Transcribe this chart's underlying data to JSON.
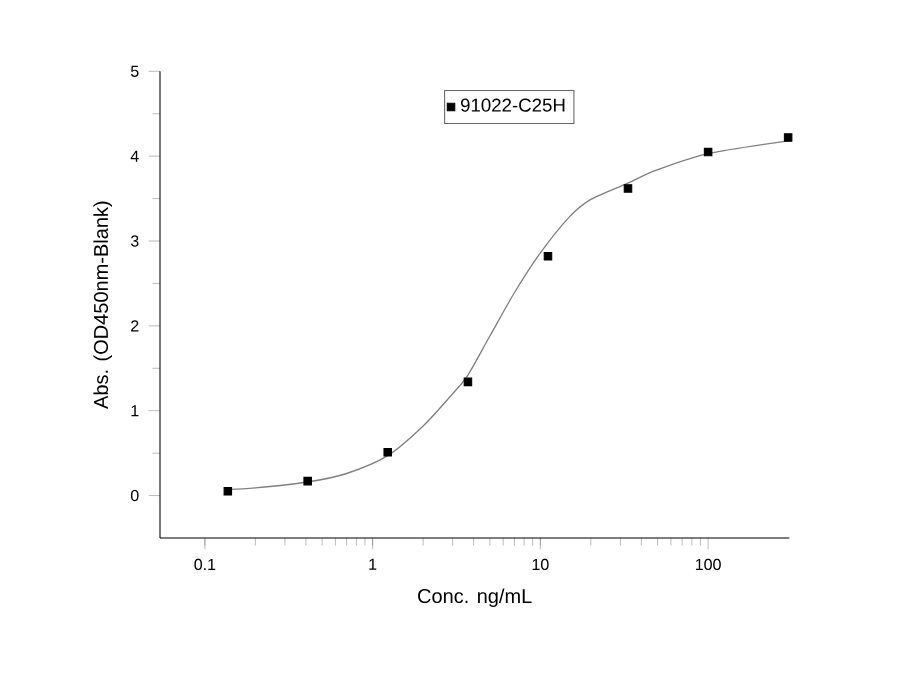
{
  "chart_data": {
    "type": "scatter",
    "xlabel": "Conc. ng/mL",
    "ylabel": "Abs. (OD450nm-Blank)",
    "log": "x",
    "xlim": [
      0.054,
      305
    ],
    "ylim": [
      -0.5,
      5
    ],
    "xticks": [
      0.1,
      1,
      10,
      100
    ],
    "yticks": [
      0,
      1,
      2,
      3,
      4,
      5
    ],
    "legend": "top",
    "series": [
      {
        "name": "91022-C25H",
        "color": "#000000",
        "marker": "square",
        "x": [
          0.137,
          0.41,
          1.23,
          3.7,
          11.1,
          33.3,
          100,
          300
        ],
        "values": [
          0.05,
          0.17,
          0.51,
          1.34,
          2.82,
          3.62,
          4.05,
          4.22
        ]
      },
      {
        "type": "line",
        "color": "#808080",
        "marker": "none",
        "x": [
          0.137,
          0.2,
          0.41,
          0.7,
          1.23,
          2,
          3,
          3.7,
          5,
          7,
          10,
          15,
          20,
          33,
          50,
          100,
          300
        ],
        "values": [
          0.07,
          0.09,
          0.16,
          0.26,
          0.47,
          0.82,
          1.2,
          1.42,
          1.88,
          2.39,
          2.86,
          3.29,
          3.49,
          3.68,
          3.84,
          4.03,
          4.18
        ]
      }
    ]
  }
}
